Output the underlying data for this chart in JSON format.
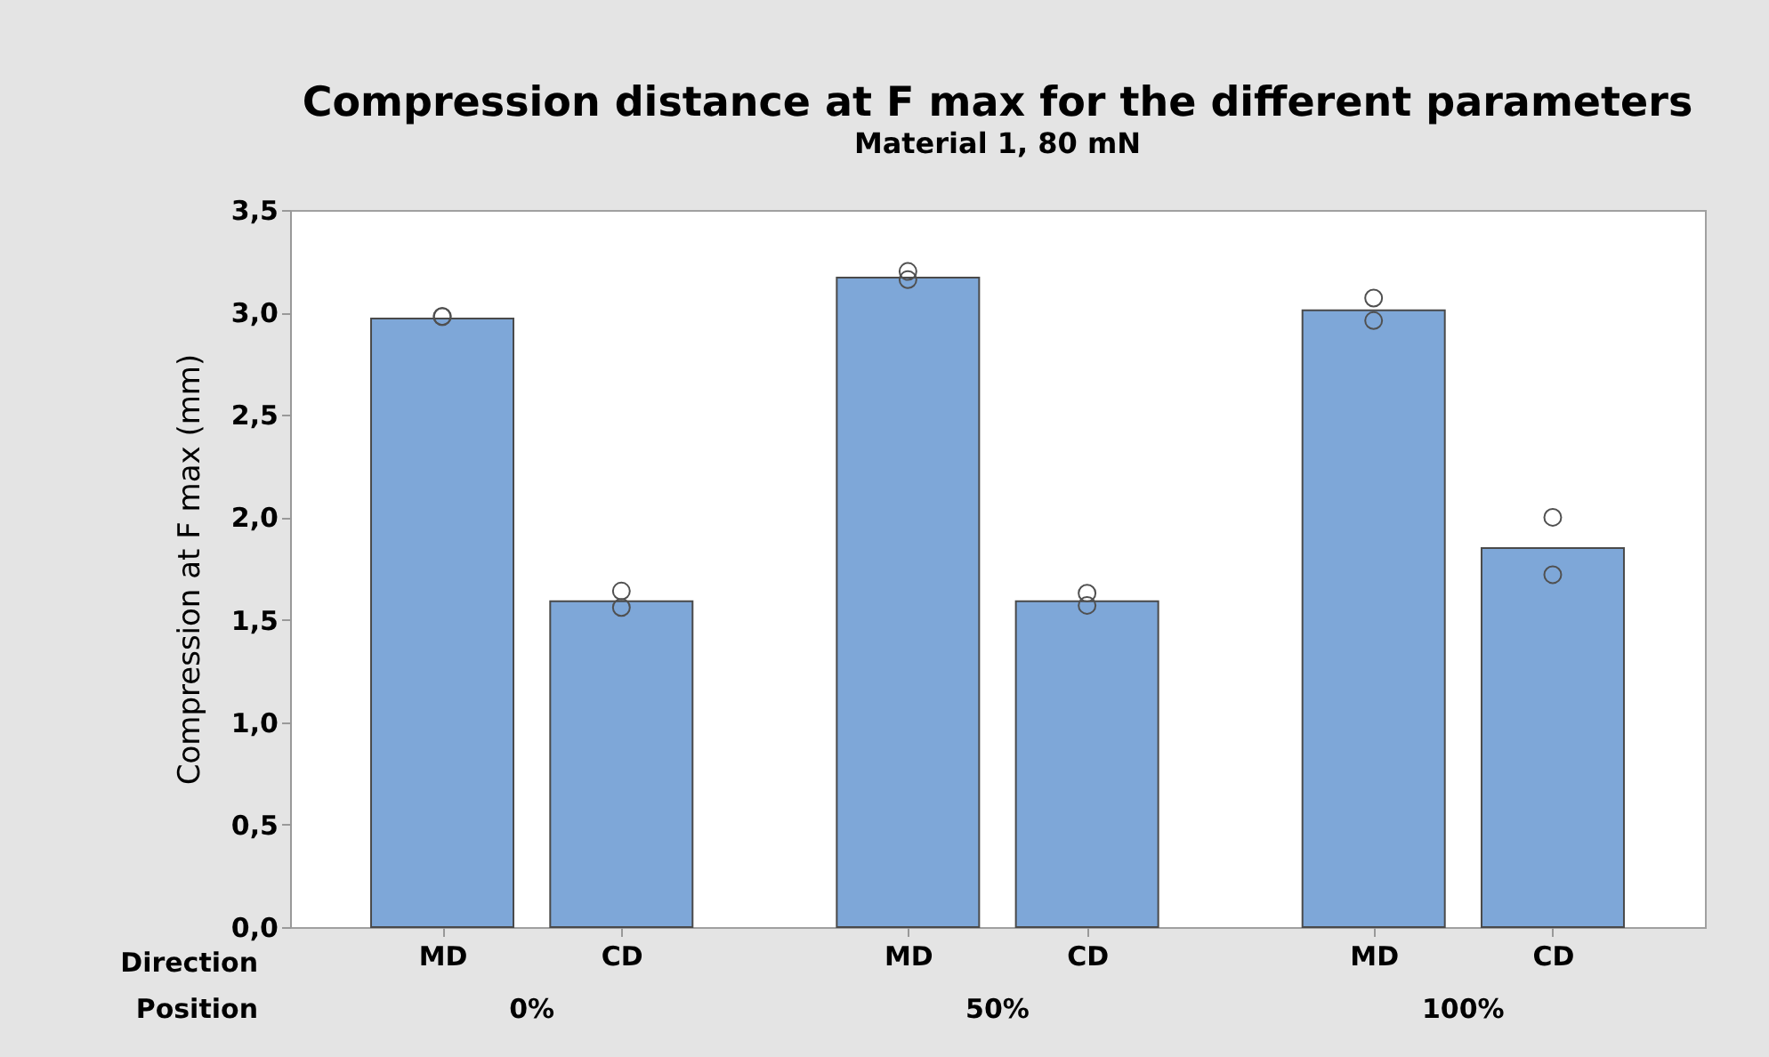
{
  "chart_data": {
    "type": "bar",
    "title": "Compression distance at F max for the different parameters",
    "subtitle": "Material 1, 80 mN",
    "ylabel": "Compression at F max (mm)",
    "categories": [
      "MD",
      "CD",
      "MD",
      "CD",
      "MD",
      "CD"
    ],
    "series": [
      {
        "type": "bar",
        "color": "#7ea7d8",
        "values": [
          2.97,
          1.59,
          3.17,
          1.59,
          3.01,
          1.85
        ]
      },
      {
        "type": "scatter",
        "color": "#505050",
        "values": [
          2.98,
          1.64,
          3.2,
          1.63,
          3.07,
          2.0
        ]
      },
      {
        "type": "scatter",
        "color": "#505050",
        "values": [
          2.98,
          1.56,
          3.16,
          1.57,
          2.96,
          1.72
        ]
      }
    ],
    "ylim": [
      0,
      3.5
    ],
    "yticks": [
      {
        "value": 0,
        "label": "0,0"
      },
      {
        "value": 0.5,
        "label": "0,5"
      },
      {
        "value": 1,
        "label": "1,0"
      },
      {
        "value": 1.5,
        "label": "1,5"
      },
      {
        "value": 2,
        "label": "2,0"
      },
      {
        "value": 2.5,
        "label": "2,5"
      },
      {
        "value": 3,
        "label": "3,0"
      },
      {
        "value": 3.5,
        "label": "3,5"
      }
    ],
    "annotations": [
      "Direction",
      "Position",
      "0%",
      "50%",
      "100%"
    ],
    "marker": "circle",
    "grid": false
  }
}
